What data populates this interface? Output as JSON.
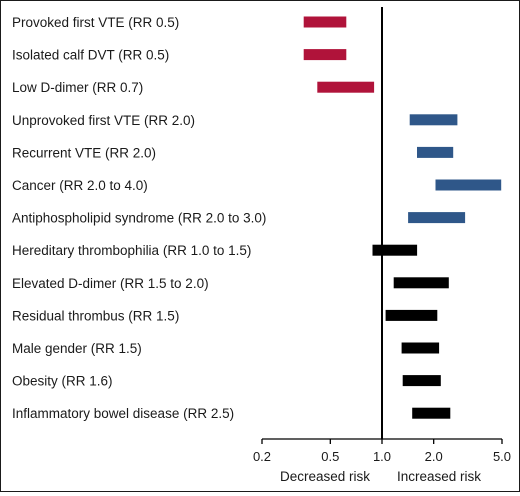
{
  "chart_data": {
    "type": "range-bar",
    "xscale": "log",
    "xlim": [
      0.2,
      5.0
    ],
    "xticks": [
      0.2,
      0.5,
      1.0,
      2.0,
      5.0
    ],
    "xtick_labels": [
      "0.2",
      "0.5",
      "1.0",
      "2.0",
      "5.0"
    ],
    "reference_line": 1.0,
    "xlabel_left": "Decreased risk",
    "xlabel_right": "Increased risk",
    "grid": false,
    "colors": {
      "decreased": "#b0133a",
      "increased_strong": "#2f5789",
      "increased_other": "#000000"
    },
    "rows": [
      {
        "label": "Provoked first VTE (RR 0.5)",
        "low": 0.35,
        "high": 0.62,
        "group": "decreased"
      },
      {
        "label": "Isolated calf DVT (RR 0.5)",
        "low": 0.35,
        "high": 0.62,
        "group": "decreased"
      },
      {
        "label": "Low D-dimer (RR 0.7)",
        "low": 0.42,
        "high": 0.9,
        "group": "decreased"
      },
      {
        "label": "Unprovoked first VTE (RR 2.0)",
        "low": 1.45,
        "high": 2.75,
        "group": "increased_strong"
      },
      {
        "label": "Recurrent VTE (RR 2.0)",
        "low": 1.6,
        "high": 2.6,
        "group": "increased_strong"
      },
      {
        "label": "Cancer (RR 2.0 to 4.0)",
        "low": 2.05,
        "high": 4.95,
        "group": "increased_strong"
      },
      {
        "label": "Antiphospholipid syndrome (RR 2.0 to 3.0)",
        "low": 1.42,
        "high": 3.05,
        "group": "increased_strong"
      },
      {
        "label": "Hereditary thrombophilia (RR 1.0 to 1.5)",
        "low": 0.88,
        "high": 1.6,
        "group": "increased_other"
      },
      {
        "label": "Elevated D-dimer (RR 1.5 to 2.0)",
        "low": 1.17,
        "high": 2.45,
        "group": "increased_other"
      },
      {
        "label": "Residual thrombus (RR 1.5)",
        "low": 1.05,
        "high": 2.1,
        "group": "increased_other"
      },
      {
        "label": "Male gender (RR 1.5)",
        "low": 1.3,
        "high": 2.15,
        "group": "increased_other"
      },
      {
        "label": "Obesity (RR 1.6)",
        "low": 1.32,
        "high": 2.2,
        "group": "increased_other"
      },
      {
        "label": "Inflammatory bowel disease (RR 2.5)",
        "low": 1.5,
        "high": 2.5,
        "group": "increased_other"
      }
    ]
  }
}
